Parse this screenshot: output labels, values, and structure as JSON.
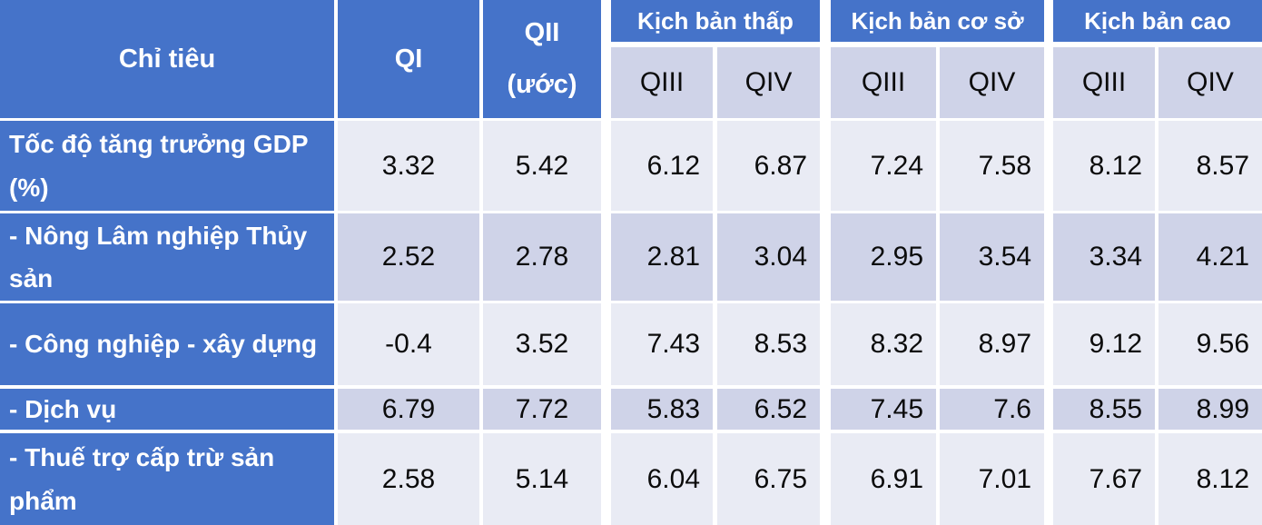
{
  "colors": {
    "header_blue": "#4573C9",
    "band_light": "#E9EBF4",
    "band_dark": "#CFD3E8",
    "border_white": "#FFFFFF",
    "text_black": "#0B0B0B",
    "text_white": "#FFFFFF"
  },
  "chart_data": {
    "type": "table",
    "header": {
      "indicator": "Chỉ tiêu",
      "qi": "QI",
      "qii_line1": "QII",
      "qii_line2": "(ước)",
      "groups": [
        {
          "label": "Kịch bản thấp",
          "sub1": "QIII",
          "sub2": "QIV"
        },
        {
          "label": "Kịch bản cơ sở",
          "sub1": "QIII",
          "sub2": "QIV"
        },
        {
          "label": "Kịch bản cao",
          "sub1": "QIII",
          "sub2": "QIV"
        }
      ]
    },
    "rows": [
      {
        "label": "Tốc độ tăng trưởng GDP (%)",
        "qi": "3.32",
        "qii": "5.42",
        "values": [
          "6.12",
          "6.87",
          "7.24",
          "7.58",
          "8.12",
          "8.57"
        ]
      },
      {
        "label": "- Nông Lâm nghiệp Thủy sản",
        "qi": "2.52",
        "qii": "2.78",
        "values": [
          "2.81",
          "3.04",
          "2.95",
          "3.54",
          "3.34",
          "4.21"
        ]
      },
      {
        "label": "- Công nghiệp - xây dựng",
        "qi": "-0.4",
        "qii": "3.52",
        "values": [
          "7.43",
          "8.53",
          "8.32",
          "8.97",
          "9.12",
          "9.56"
        ]
      },
      {
        "label": "- Dịch vụ",
        "qi": "6.79",
        "qii": "7.72",
        "values": [
          "5.83",
          "6.52",
          "7.45",
          "7.6",
          "8.55",
          "8.99"
        ]
      },
      {
        "label": "- Thuế trợ cấp trừ sản phẩm",
        "qi": "2.58",
        "qii": "5.14",
        "values": [
          "6.04",
          "6.75",
          "6.91",
          "7.01",
          "7.67",
          "8.12"
        ]
      }
    ]
  }
}
